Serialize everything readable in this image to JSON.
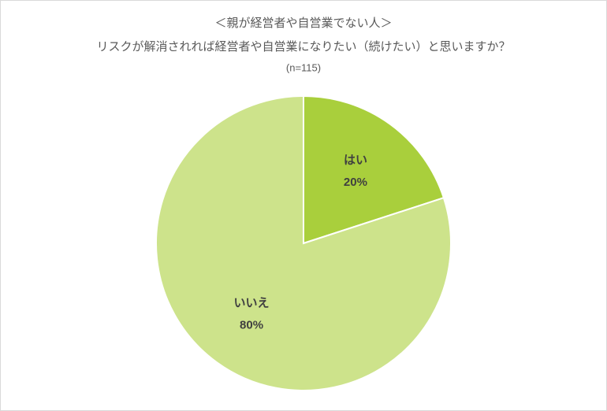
{
  "chart_data": {
    "type": "pie",
    "title": [
      "＜親が経営者や自営業でない人＞",
      "リスクが解消されれば経営者や自営業になりたい（続けたい）と思いますか？"
    ],
    "subtitle": "(n=115)",
    "categories": [
      "はい",
      "いいえ"
    ],
    "values": [
      20,
      80
    ],
    "value_labels": [
      "20%",
      "80%"
    ],
    "colors": [
      "#a9cf3c",
      "#cde38b"
    ]
  }
}
